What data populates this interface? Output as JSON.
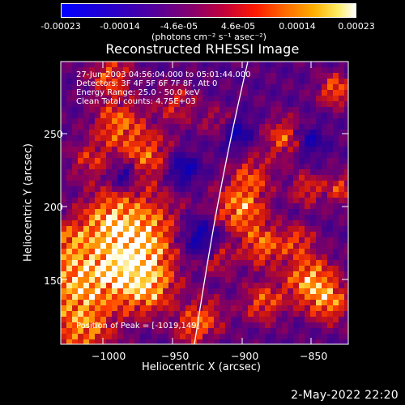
{
  "colorbar": {
    "ticks": [
      "-0.00023",
      "-0.00014",
      "-4.6e-05",
      "4.6e-05",
      "0.00014",
      "0.00023"
    ],
    "unit_label": "(photons cm⁻² s⁻¹ asec⁻²)"
  },
  "plot": {
    "title": "Reconstructed RHESSI Image",
    "annotations": {
      "line1": "27-Jun-2003 04:56:04.000 to 05:01:44.000",
      "line2": "Detectors: 3F 4F 5F 6F 7F 8F, Att 0",
      "line3": "Energy Range: 25.0 - 50.0 keV",
      "line4": "Clean     Total counts: 4.75E+03",
      "peak": "Position of Peak = [-1019,149]"
    },
    "xlabel": "Heliocentric X (arcsec)",
    "ylabel": "Heliocentric Y (arcsec)",
    "xticks": [
      "−1000",
      "−950",
      "−900",
      "−850"
    ],
    "yticks": [
      "250",
      "200",
      "150"
    ],
    "xrange": [
      -1030,
      -835
    ],
    "yrange": [
      103,
      283
    ]
  },
  "timestamp": "2-May-2022 22:20",
  "colors": {
    "background": "#000000",
    "axes": "#ffffff",
    "limb": "#ffffff"
  }
}
